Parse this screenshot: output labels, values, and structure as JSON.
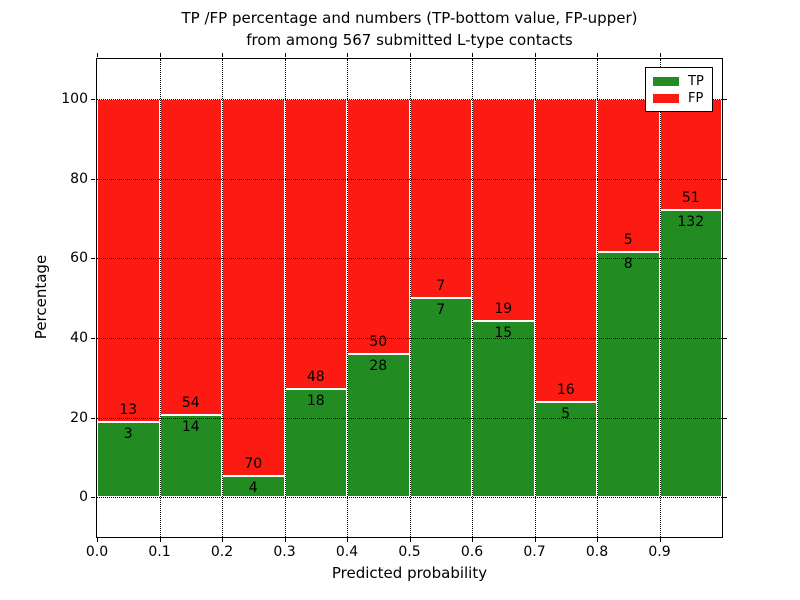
{
  "title": {
    "line1": "TP /FP percentage and numbers (TP-bottom value, FP-upper)",
    "line2": "from among 567 submitted L-type contacts"
  },
  "chart_data": {
    "type": "bar",
    "stacked": true,
    "normalized_to_percent": true,
    "title": "TP /FP percentage and numbers (TP-bottom value, FP-upper)\nfrom among 567 submitted L-type contacts",
    "xlabel": "Predicted probability",
    "ylabel": "Percentage",
    "total_contacts": 567,
    "xlim": [
      0.0,
      1.0
    ],
    "ylim": [
      -10,
      110
    ],
    "bin_width": 0.1,
    "bin_starts": [
      0.0,
      0.1,
      0.2,
      0.3,
      0.4,
      0.5,
      0.6,
      0.7,
      0.8,
      0.9
    ],
    "xtick_labels": [
      "0.0",
      "0.1",
      "0.2",
      "0.3",
      "0.4",
      "0.5",
      "0.6",
      "0.7",
      "0.8",
      "0.9"
    ],
    "ytick_values": [
      0,
      20,
      40,
      60,
      80,
      100
    ],
    "series": [
      {
        "name": "TP",
        "color": "#228b22",
        "counts": [
          3,
          14,
          4,
          18,
          28,
          7,
          15,
          5,
          8,
          132
        ]
      },
      {
        "name": "FP",
        "color": "#fb1b13",
        "counts": [
          13,
          54,
          70,
          48,
          50,
          7,
          19,
          16,
          5,
          51
        ]
      }
    ],
    "tp_percent": [
      18.75,
      20.59,
      5.41,
      27.27,
      35.9,
      50.0,
      44.12,
      23.81,
      61.54,
      72.13
    ],
    "grid": {
      "visible": true,
      "style": "dotted",
      "color": "#000000"
    },
    "bar_edge_color": "#ffffff",
    "legend": {
      "position": "upper right",
      "entries": [
        {
          "label": "TP",
          "color": "#228b22"
        },
        {
          "label": "FP",
          "color": "#fb1b13"
        }
      ]
    }
  }
}
